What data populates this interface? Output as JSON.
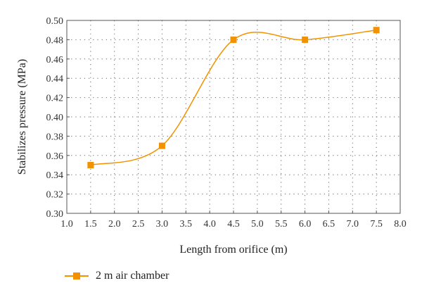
{
  "chart_data": {
    "type": "line",
    "xlabel": "Length from orifice (m)",
    "ylabel": "Stabilizes pressure (MPa)",
    "xlim": [
      1.0,
      8.0
    ],
    "ylim": [
      0.3,
      0.5
    ],
    "x_ticks": [
      "1.0",
      "1.5",
      "2.0",
      "2.5",
      "3.0",
      "3.5",
      "4.0",
      "4.5",
      "5.0",
      "5.5",
      "6.0",
      "6.5",
      "7.0",
      "7.5",
      "8.0"
    ],
    "y_ticks": [
      "0.30",
      "0.32",
      "0.34",
      "0.36",
      "0.38",
      "0.40",
      "0.42",
      "0.44",
      "0.46",
      "0.48",
      "0.50"
    ],
    "grid": "dotted",
    "legend_position": "bottom-left",
    "series": [
      {
        "name": "2 m air chamber",
        "color": "#f39200",
        "marker": "square",
        "smooth": true,
        "x": [
          1.5,
          3.0,
          4.5,
          6.0,
          7.5
        ],
        "y": [
          0.35,
          0.37,
          0.48,
          0.48,
          0.49
        ]
      }
    ]
  }
}
